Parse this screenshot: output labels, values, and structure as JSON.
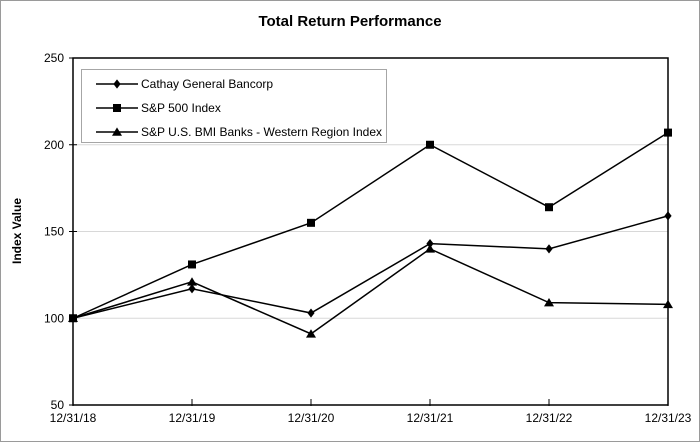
{
  "chart_data": {
    "type": "line",
    "title": "Total Return Performance",
    "xlabel": "",
    "ylabel": "Index Value",
    "categories": [
      "12/31/18",
      "12/31/19",
      "12/31/20",
      "12/31/21",
      "12/31/22",
      "12/31/23"
    ],
    "ylim": [
      50,
      250
    ],
    "yticks": [
      50,
      100,
      150,
      200,
      250
    ],
    "grid": "horizontal",
    "legend_position": "top-left-inside",
    "series": [
      {
        "name": "Cathay General Bancorp",
        "marker": "diamond",
        "color": "#000000",
        "values": [
          100,
          117,
          103,
          143,
          140,
          159
        ]
      },
      {
        "name": "S&P 500 Index",
        "marker": "square",
        "color": "#000000",
        "values": [
          100,
          131,
          155,
          200,
          164,
          207
        ]
      },
      {
        "name": "S&P U.S. BMI Banks - Western Region Index",
        "marker": "triangle",
        "color": "#000000",
        "values": [
          100,
          121,
          91,
          140,
          109,
          108
        ]
      }
    ],
    "colors": {
      "series": "#000000",
      "grid": "#d8d8d8",
      "frame": "#000000",
      "legend_border": "#a6a6a6",
      "outer_border": "#9a9a9a"
    }
  }
}
